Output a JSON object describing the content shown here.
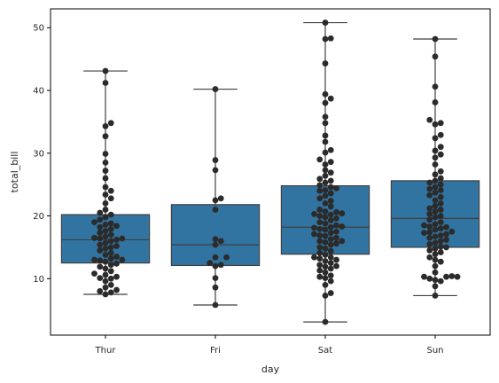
{
  "chart_data": {
    "type": "box",
    "overlay": "swarm",
    "xlabel": "day",
    "ylabel": "total_bill",
    "categories": [
      "Thur",
      "Fri",
      "Sat",
      "Sun"
    ],
    "ylim": [
      1,
      53
    ],
    "yticks": [
      10,
      20,
      30,
      40,
      50
    ],
    "grid": false,
    "legend": "none",
    "box_color": "#3274a1",
    "line_color": "#3f3f3f",
    "point_color": "#2b2b2b",
    "boxes": [
      {
        "category": "Thur",
        "whislo": 7.5,
        "q1": 12.5,
        "median": 16.2,
        "q3": 20.2,
        "whishi": 43.1
      },
      {
        "category": "Fri",
        "whislo": 5.8,
        "q1": 12.1,
        "median": 15.4,
        "q3": 21.8,
        "whishi": 40.2
      },
      {
        "category": "Sat",
        "whislo": 3.1,
        "q1": 13.9,
        "median": 18.2,
        "q3": 24.8,
        "whishi": 50.8
      },
      {
        "category": "Sun",
        "whislo": 7.3,
        "q1": 15.0,
        "median": 19.6,
        "q3": 25.6,
        "whishi": 48.2
      }
    ],
    "points": [
      [
        7.5,
        7.8,
        8.0,
        8.2,
        8.6,
        9.0,
        9.6,
        10.0,
        10.1,
        10.3,
        10.6,
        10.8,
        11.2,
        11.6,
        11.9,
        12.2,
        12.4,
        12.7,
        12.9,
        13.0,
        13.0,
        13.2,
        13.5,
        13.8,
        14.1,
        14.5,
        14.8,
        15.0,
        15.2,
        15.4,
        15.7,
        16.0,
        16.2,
        16.4,
        16.4,
        16.5,
        16.7,
        17.0,
        17.3,
        17.6,
        17.9,
        18.2,
        18.4,
        18.6,
        18.8,
        19.0,
        19.4,
        19.8,
        20.2,
        20.5,
        21.0,
        22.0,
        22.8,
        23.4,
        24.0,
        24.6,
        26.0,
        27.2,
        28.5,
        29.9,
        32.7,
        34.3,
        34.8,
        41.2,
        43.1
      ],
      [
        5.8,
        8.6,
        10.1,
        12.0,
        12.2,
        12.5,
        13.4,
        13.4,
        15.4,
        16.0,
        16.3,
        21.0,
        22.5,
        22.8,
        27.3,
        28.9,
        40.2
      ],
      [
        3.1,
        7.3,
        7.7,
        9.0,
        9.6,
        10.1,
        10.3,
        10.5,
        11.0,
        11.3,
        11.6,
        11.9,
        12.0,
        12.2,
        12.5,
        12.8,
        13.0,
        13.2,
        13.4,
        13.4,
        13.8,
        14.1,
        14.4,
        14.8,
        15.0,
        15.4,
        15.6,
        15.8,
        16.0,
        16.0,
        16.3,
        16.5,
        16.8,
        16.9,
        17.1,
        17.3,
        17.5,
        17.8,
        17.9,
        18.1,
        18.2,
        18.3,
        18.5,
        18.8,
        19.0,
        19.3,
        19.6,
        19.8,
        20.0,
        20.2,
        20.3,
        20.4,
        20.6,
        20.7,
        21.0,
        21.5,
        22.0,
        22.4,
        22.8,
        23.2,
        23.6,
        24.0,
        24.1,
        24.4,
        24.6,
        24.9,
        25.3,
        25.6,
        25.9,
        26.4,
        26.9,
        27.3,
        28.2,
        28.6,
        29.0,
        30.1,
        30.5,
        31.8,
        32.8,
        34.8,
        35.8,
        38.0,
        38.7,
        39.4,
        44.3,
        48.2,
        48.3,
        50.8
      ],
      [
        7.3,
        8.8,
        9.6,
        9.8,
        10.0,
        10.3,
        10.3,
        10.3,
        10.4,
        11.0,
        12.0,
        12.7,
        13.0,
        13.4,
        13.9,
        14.2,
        14.5,
        14.8,
        15.0,
        15.1,
        15.5,
        15.7,
        16.0,
        16.2,
        16.5,
        16.7,
        16.9,
        17.1,
        17.3,
        17.4,
        17.5,
        17.8,
        18.0,
        18.2,
        18.3,
        18.5,
        18.7,
        19.0,
        19.4,
        19.8,
        20.0,
        20.3,
        20.7,
        21.0,
        21.2,
        21.6,
        22.0,
        22.5,
        23.0,
        23.3,
        23.7,
        24.1,
        24.3,
        24.6,
        25.0,
        25.3,
        25.6,
        26.0,
        26.6,
        27.1,
        28.2,
        29.3,
        29.8,
        30.4,
        31.0,
        32.4,
        32.9,
        34.6,
        34.8,
        35.3,
        38.1,
        40.6,
        45.4,
        48.2
      ]
    ]
  }
}
